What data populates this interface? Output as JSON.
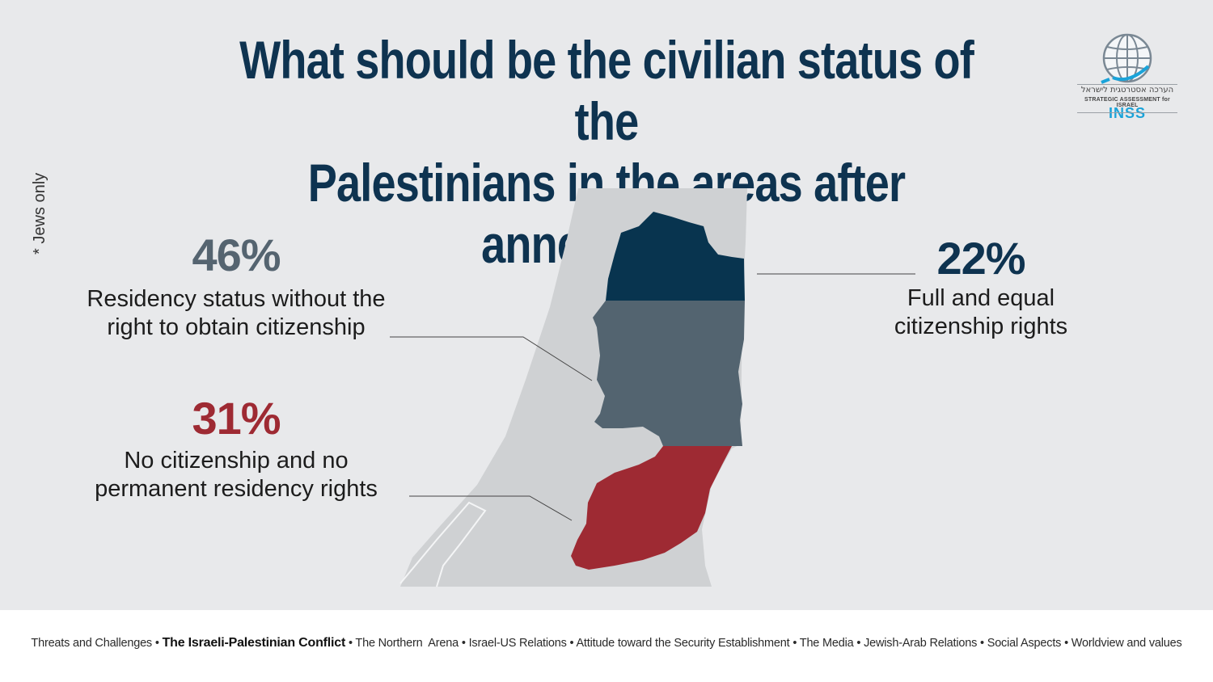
{
  "chart_data": {
    "type": "pie",
    "title_lines": [
      "What should be the civilian status of the",
      "Palestinians in the areas after annexation?"
    ],
    "note": "* Jews only",
    "slices": [
      {
        "label_lines": [
          "Full and equal",
          "citizenship rights"
        ],
        "value": 22,
        "display": "22%",
        "color": "#08344f"
      },
      {
        "label_lines": [
          "Residency status without the",
          "right to obtain citizenship"
        ],
        "value": 46,
        "display": "46%",
        "color": "#536470"
      },
      {
        "label_lines": [
          "No citizenship and no",
          "permanent residency rights"
        ],
        "value": 31,
        "display": "31%",
        "color": "#9e2a33"
      }
    ],
    "percent_colors": {
      "46": "#556470",
      "22": "#0e3350",
      "31": "#9e2a33"
    }
  },
  "logo": {
    "hebrew": "הערכה אסטרטגית לישראל",
    "english": "STRATEGIC ASSESSMENT for ISRAEL",
    "brand": "INSS",
    "icon": "globe-icon"
  },
  "footer": {
    "topics": [
      {
        "label": "Threats and Challenges",
        "active": false
      },
      {
        "label": "The Israeli-Palestinian Conflict",
        "active": true
      },
      {
        "label": "The Northern  Arena",
        "active": false
      },
      {
        "label": "Israel-US Relations",
        "active": false
      },
      {
        "label": "Attitude toward the Security Establishment",
        "active": false
      },
      {
        "label": "The Media",
        "active": false
      },
      {
        "label": "Jewish-Arab Relations",
        "active": false
      },
      {
        "label": "Social Aspects",
        "active": false
      },
      {
        "label": "Worldview and values",
        "active": false
      }
    ],
    "separator": "•"
  }
}
